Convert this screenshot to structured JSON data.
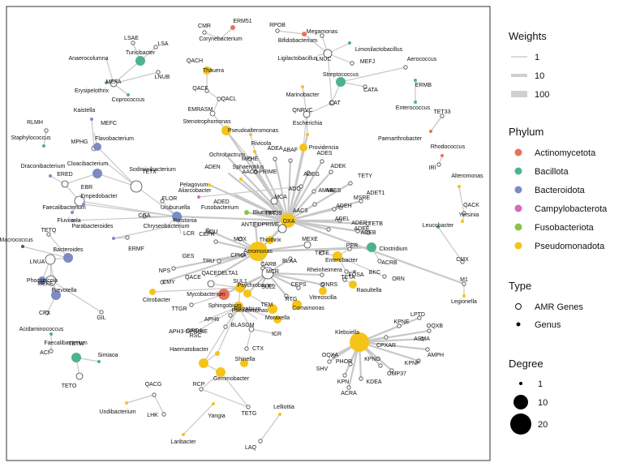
{
  "legend": {
    "weights": {
      "title": "Weights",
      "items": [
        "1",
        "10",
        "100"
      ]
    },
    "phylum": {
      "title": "Phylum",
      "items": [
        "Actinomycetota",
        "Bacillota",
        "Bacteroidota",
        "Campylobacterota",
        "Fusobacteriota",
        "Pseudomonadota"
      ]
    },
    "type": {
      "title": "Type",
      "items": [
        "AMR Genes",
        "Genus"
      ]
    },
    "degree": {
      "title": "Degree",
      "items": [
        "1",
        "10",
        "20"
      ]
    }
  },
  "colors": {
    "Actinomycetota": "#e8735a",
    "Bacillota": "#4db38a",
    "Bacteroidota": "#7b8cc4",
    "Campylobacterota": "#d36bc1",
    "Fusobacteriota": "#8bc34a",
    "Pseudomonadota": "#f4c419",
    "Other": "#555555",
    "edge": "#c8c8c8"
  },
  "node_labels": [
    "CMR",
    "ERM51",
    "Corynebacterium",
    "RPOB",
    "Bifidobacterium",
    "Megamonas",
    "LSAE",
    "LSA",
    "Turicibacter",
    "Anaerocolumna",
    "MEFA",
    "LNUB",
    "Erysipelothrix",
    "Coprococcus",
    "Limosilactobacillus",
    "Ligilactobacillus",
    "LNUC",
    "MEFJ",
    "QACH",
    "Thauera",
    "Aerococcus",
    "Streptococcus",
    "ERMB",
    "CATA",
    "Marinobacter",
    "Enterococcus",
    "QACF",
    "QACL",
    "CAT",
    "EMRASM",
    "QNRVC",
    "TET33",
    "RLMH",
    "Kaistella",
    "Stenotrophomonas",
    "Pseudoalteromonas",
    "Escherichia",
    "Paenarthrobacter",
    "MEFC",
    "Staphylococcus",
    "MPHG",
    "Flavobacterium",
    "Rivicola",
    "Providencia",
    "Rhodococcus",
    "IRI",
    "Sodiminibacterium",
    "Cloacibacterium",
    "Ochrobactrum",
    "MPHE",
    "ADEA",
    "ABAF",
    "ADES",
    "Draconibacterium",
    "ERED",
    "TETX",
    "ADEN",
    "AAC6-PRIME",
    "ADEG",
    "ADEK",
    "Pelagovum",
    "Sphaerotilus",
    "ADED",
    "ADC",
    "AMVA",
    "TETY",
    "Alteromonas",
    "EBR",
    "Empedobacter",
    "Aliarcobacter",
    "FLOR",
    "MCA",
    "ABES",
    "ADET1",
    "MSRE",
    "Faecalibacterium",
    "Fusobacterium",
    "Bluewate",
    "TET39",
    "ADEH",
    "QACK",
    "Fluviicola",
    "CGA",
    "Uruburuella",
    "Ralstonia",
    "AAC3",
    "ADER",
    "TETB",
    "Yersinia",
    "LCR",
    "ANT3-DPRIME",
    "AQU",
    "OXA",
    "ADEL",
    "ADEE",
    "ADEB",
    "Chryseobacterium",
    "Thiothrix",
    "Leucobacter",
    "TETQ",
    "Parabacteroides",
    "ERMF",
    "CEPH",
    "MOX",
    "MEXE",
    "Clostridium",
    "Macrococcus",
    "Bacteroides",
    "GES",
    "TRU",
    "CPHA",
    "Aeromonas",
    "PER",
    "CMX",
    "LNUA",
    "TETE",
    "Enterobacter",
    "ACRB",
    "NPS",
    "BLAA",
    "Rheinheimera",
    "M1",
    "QACEDELTA1",
    "CARB",
    "MCR",
    "FOSA",
    "BKC",
    "ORN",
    "MEFE",
    "CMY",
    "Phocaeicola",
    "Prevotella",
    "QACE",
    "SUL1",
    "CEPS",
    "TETA",
    "Raoultella",
    "Legionella",
    "Mycobacterium",
    "Psychrobacter",
    "SUL2",
    "QNRS",
    "Vitreoscilla",
    "CFX",
    "Citrobacter",
    "TTGR",
    "Pseudomonas",
    "RTG",
    "Comamonas",
    "GIL",
    "TEM",
    "LPTD",
    "Sphingobium",
    "Rhizobium",
    "Moraxella",
    "GRDA",
    "APH6",
    "OQXB",
    "RSC",
    "BLASGM",
    "ICR",
    "KPNE",
    "Acidaminococcus",
    "ASMA",
    "Klebsiella",
    "ACI",
    "CPXAR",
    "AMPH",
    "TETW",
    "CTX",
    "APH3-DPRIME",
    "OQXA",
    "KPNF",
    "Haematobacter",
    "Shinella",
    "SHV",
    "PHOR",
    "KPNO",
    "OMP37",
    "Faecalibacterium",
    "Simiaoa",
    "Gemmobacter",
    "KPN",
    "KDEA",
    "ACRA",
    "TETO",
    "RCP",
    "QACG",
    "Undibacterium",
    "Yangia",
    "TETG",
    "LHK",
    "Lelliottia",
    "Laribacter",
    "LAQ"
  ]
}
